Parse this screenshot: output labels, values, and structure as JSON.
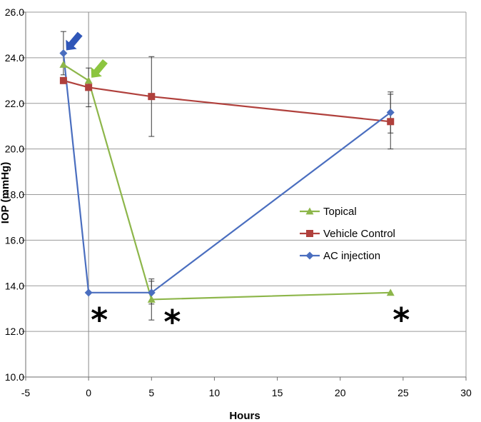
{
  "chart_data": {
    "type": "line",
    "xlabel": "Hours",
    "ylabel": "IOP (mmHg)",
    "xlim": [
      -5,
      30
    ],
    "ylim": [
      10,
      26
    ],
    "xticks": [
      "-5",
      "0",
      "5",
      "10",
      "15",
      "20",
      "25",
      "30"
    ],
    "yticks": [
      "10.0",
      "12.0",
      "14.0",
      "16.0",
      "18.0",
      "20.0",
      "22.0",
      "24.0",
      "26.0"
    ],
    "grid": "horizontal",
    "legend_position": "center-right",
    "series": [
      {
        "name": "Topical",
        "color": "#8db64a",
        "marker": "triangle",
        "x": [
          -2,
          0,
          5,
          24
        ],
        "y": [
          23.7,
          23.0,
          13.4,
          13.7
        ],
        "err": [
          null,
          0.0,
          0.9,
          null
        ]
      },
      {
        "name": "Vehicle Control",
        "color": "#b0403c",
        "marker": "square",
        "x": [
          -2,
          0,
          5,
          24
        ],
        "y": [
          23.0,
          22.7,
          22.3,
          21.2
        ],
        "err": [
          null,
          0.85,
          1.75,
          1.2
        ]
      },
      {
        "name": "AC injection",
        "color": "#4a6ebf",
        "marker": "diamond",
        "x": [
          -2,
          0,
          5,
          24
        ],
        "y": [
          24.2,
          13.7,
          13.7,
          21.6
        ],
        "err": [
          0.95,
          null,
          0.5,
          0.9
        ]
      }
    ],
    "annotations": {
      "stars": [
        {
          "text": "*",
          "x": 0.4,
          "y": 12.7
        },
        {
          "text": "*",
          "x": 6.2,
          "y": 12.6
        },
        {
          "text": "*",
          "x": 24.4,
          "y": 12.7
        }
      ],
      "arrows": [
        {
          "color": "#2f56b8",
          "x": -2,
          "y": 24.2,
          "icon": "arrow-down-left-icon"
        },
        {
          "color": "#8cc540",
          "x": 0,
          "y": 23.0,
          "icon": "arrow-down-left-icon"
        }
      ]
    }
  }
}
